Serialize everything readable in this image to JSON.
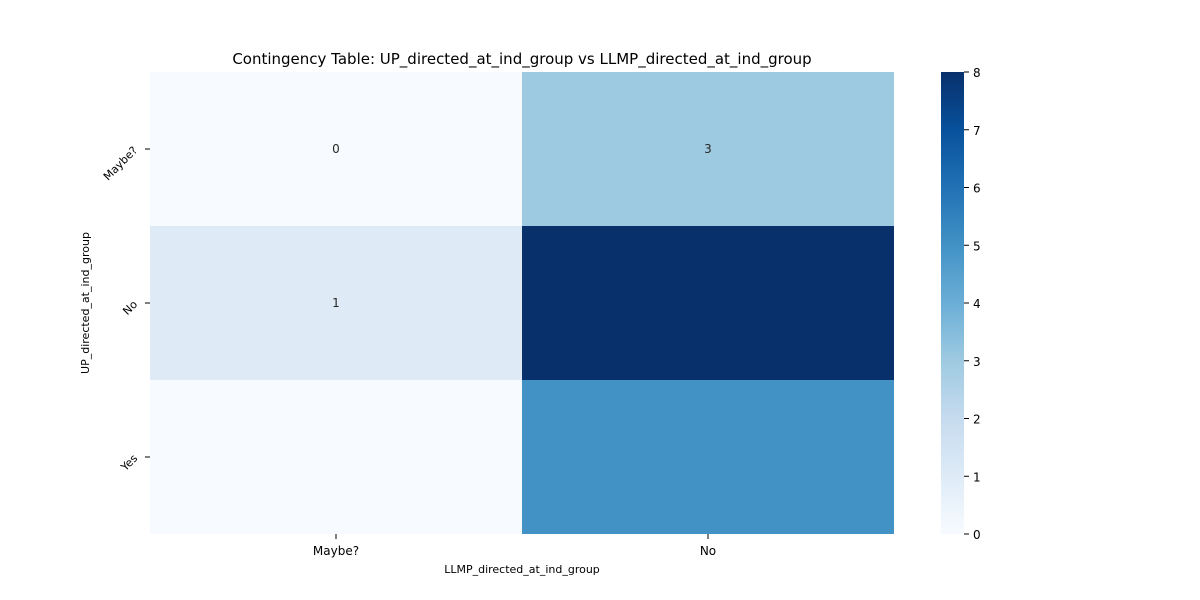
{
  "chart_data": {
    "type": "heatmap",
    "title": "Contingency Table: UP_directed_at_ind_group vs LLMP_directed_at_ind_group",
    "xlabel": "LLMP_directed_at_ind_group",
    "ylabel": "UP_directed_at_ind_group",
    "x_categories": [
      "Maybe?",
      "No"
    ],
    "y_categories": [
      "Maybe?",
      "No",
      "Yes"
    ],
    "values": [
      [
        0,
        3
      ],
      [
        1,
        8
      ],
      [
        0,
        5
      ]
    ],
    "annotations": [
      [
        "0",
        "3"
      ],
      [
        "1",
        ""
      ],
      [
        "",
        ""
      ]
    ],
    "colormap": "Blues",
    "vmin": 0,
    "vmax": 8,
    "colorbar_ticks": [
      0,
      1,
      2,
      3,
      4,
      5,
      6,
      7,
      8
    ]
  }
}
